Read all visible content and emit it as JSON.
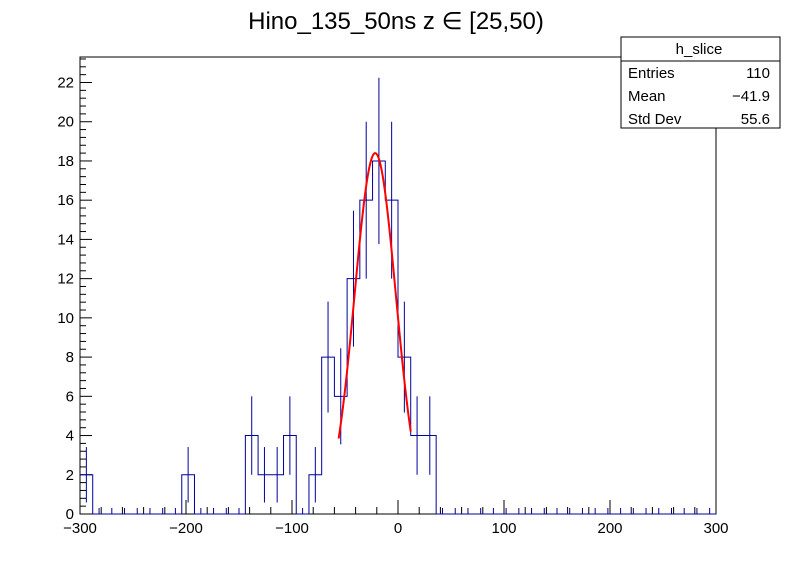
{
  "chart_data": {
    "type": "histogram",
    "title": "Hino_135_50ns z  ∈ [25,50)",
    "xlabel": "",
    "ylabel": "",
    "xlim": [
      -300,
      300
    ],
    "ylim": [
      0,
      23.3
    ],
    "x_ticks": [
      -300,
      -200,
      -100,
      0,
      100,
      200,
      300
    ],
    "x_tick_labels": [
      "−300",
      "−200",
      "−100",
      "0",
      "100",
      "200",
      "300"
    ],
    "y_ticks": [
      0,
      2,
      4,
      6,
      8,
      10,
      12,
      14,
      16,
      18,
      20,
      22
    ],
    "y_tick_labels": [
      "0",
      "2",
      "4",
      "6",
      "8",
      "10",
      "12",
      "14",
      "16",
      "18",
      "20",
      "22"
    ],
    "bin_width": 12,
    "bins": [
      {
        "x": -294,
        "value": 2
      },
      {
        "x": -198,
        "value": 2
      },
      {
        "x": -138,
        "value": 4
      },
      {
        "x": -126,
        "value": 2
      },
      {
        "x": -114,
        "value": 2
      },
      {
        "x": -102,
        "value": 4
      },
      {
        "x": -78,
        "value": 2
      },
      {
        "x": -66,
        "value": 8
      },
      {
        "x": -54,
        "value": 6
      },
      {
        "x": -42,
        "value": 12
      },
      {
        "x": -30,
        "value": 16
      },
      {
        "x": -18,
        "value": 18
      },
      {
        "x": -6,
        "value": 16
      },
      {
        "x": 6,
        "value": 8
      },
      {
        "x": 18,
        "value": 4
      },
      {
        "x": 30,
        "value": 4
      }
    ],
    "fit": {
      "type": "gaussian",
      "amplitude": 18.4,
      "mean": -21.5,
      "sigma": 19.5,
      "x_range": [
        -56,
        12
      ],
      "color": "#ff0000"
    },
    "colors": {
      "histogram": "#000099",
      "axis": "#000000"
    },
    "stats_box": {
      "name": "h_slice",
      "rows": [
        {
          "label": "Entries",
          "value": "110"
        },
        {
          "label": "Mean",
          "value": "−41.9"
        },
        {
          "label": "Std Dev",
          "value": "55.6"
        }
      ],
      "placement": "top-right"
    }
  }
}
